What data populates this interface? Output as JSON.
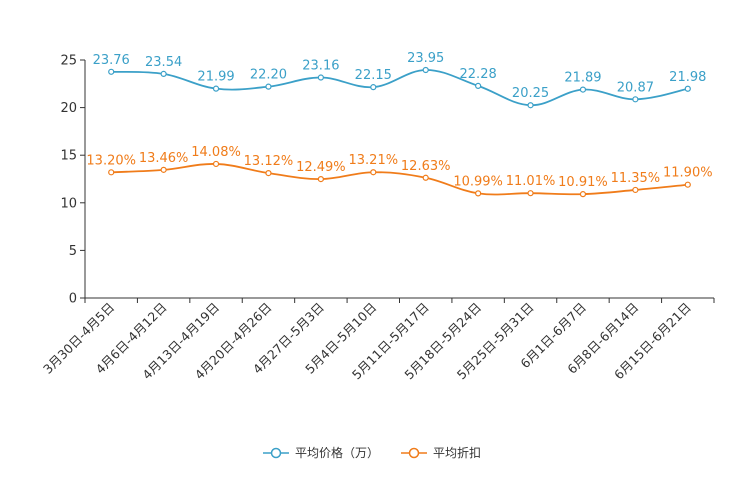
{
  "chart_data": {
    "type": "line",
    "categories": [
      "3月30日-4月5日",
      "4月6日-4月12日",
      "4月13日-4月19日",
      "4月20日-4月26日",
      "4月27日-5月3日",
      "5月4日-5月10日",
      "5月11日-5月17日",
      "5月18日-5月24日",
      "5月25日-5月31日",
      "6月1日-6月7日",
      "6月8日-6月14日",
      "6月15日-6月21日"
    ],
    "series": [
      {
        "name": "平均价格（万）",
        "color": "#3ba0c8",
        "values": [
          23.76,
          23.54,
          21.99,
          22.2,
          23.16,
          22.15,
          23.95,
          22.28,
          20.25,
          21.89,
          20.87,
          21.98
        ],
        "labels": [
          "23.76",
          "23.54",
          "21.99",
          "22.20",
          "23.16",
          "22.15",
          "23.95",
          "22.28",
          "20.25",
          "21.89",
          "20.87",
          "21.98"
        ]
      },
      {
        "name": "平均折扣",
        "color": "#f07c1a",
        "values": [
          13.2,
          13.46,
          14.08,
          13.12,
          12.49,
          13.21,
          12.63,
          10.99,
          11.01,
          10.91,
          11.35,
          11.9
        ],
        "labels": [
          "13.20%",
          "13.46%",
          "14.08%",
          "13.12%",
          "12.49%",
          "13.21%",
          "12.63%",
          "10.99%",
          "11.01%",
          "10.91%",
          "11.35%",
          "11.90%"
        ]
      }
    ],
    "yticks": [
      "0",
      "5",
      "10",
      "15",
      "20",
      "25"
    ],
    "ylim": [
      0,
      25
    ],
    "title": "",
    "xlabel": "",
    "ylabel": "",
    "legend": "bottom-center"
  }
}
